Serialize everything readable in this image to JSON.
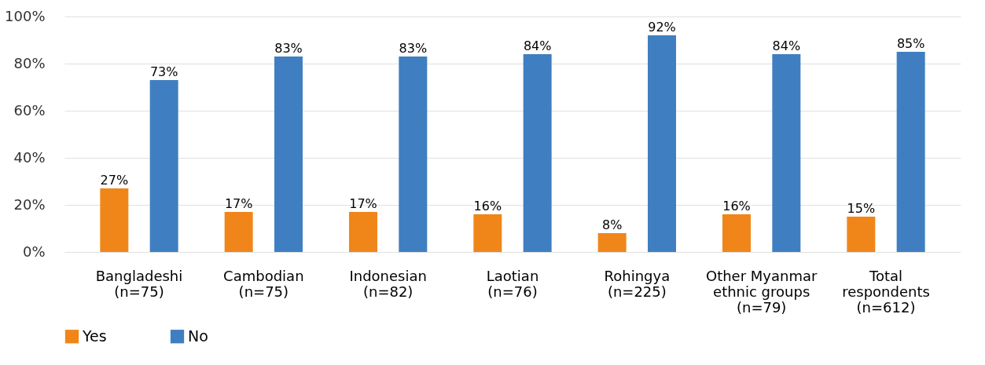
{
  "chart_data": {
    "type": "bar",
    "categories": [
      "Bangladeshi\n(n=75)",
      "Cambodian\n(n=75)",
      "Indonesian\n(n=82)",
      "Laotian\n(n=76)",
      "Rohingya\n(n=225)",
      "Other Myanmar\nethnic groups\n(n=79)",
      "Total\nrespondents\n(n=612)"
    ],
    "series": [
      {
        "name": "Yes",
        "color": "#f0861a",
        "values": [
          27,
          17,
          17,
          16,
          8,
          16,
          15
        ],
        "value_labels": [
          "27%",
          "17%",
          "17%",
          "16%",
          "8%",
          "16%",
          "15%"
        ]
      },
      {
        "name": "No",
        "color": "#3f7fc1",
        "values": [
          73,
          83,
          83,
          84,
          92,
          84,
          85
        ],
        "value_labels": [
          "73%",
          "83%",
          "83%",
          "84%",
          "92%",
          "84%",
          "85%"
        ]
      }
    ],
    "ylim": [
      0,
      100
    ],
    "yticks": [
      {
        "value": 0,
        "label": "0%"
      },
      {
        "value": 20,
        "label": "20%"
      },
      {
        "value": 40,
        "label": "40%"
      },
      {
        "value": 60,
        "label": "60%"
      },
      {
        "value": 80,
        "label": "80%"
      },
      {
        "value": 100,
        "label": "100%"
      }
    ],
    "grid": "y",
    "legend": "bottom"
  }
}
